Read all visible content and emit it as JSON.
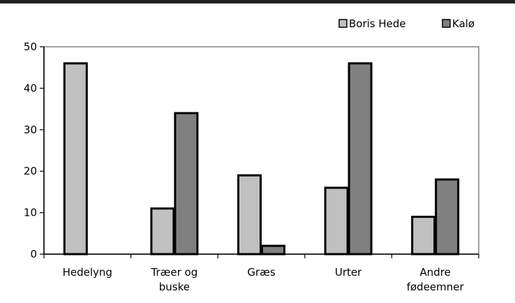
{
  "chart_data": {
    "type": "bar",
    "categories": [
      [
        "Hedelyng"
      ],
      [
        "Træer og",
        "buske"
      ],
      [
        "Græs"
      ],
      [
        "Urter"
      ],
      [
        "Andre",
        "fødeemner"
      ]
    ],
    "series": [
      {
        "name": "Boris Hede",
        "values": [
          46,
          11,
          19,
          16,
          9
        ],
        "color": "#c0c0c0"
      },
      {
        "name": "Kalø",
        "values": [
          0,
          34,
          2,
          46,
          18
        ],
        "color": "#808080"
      }
    ],
    "ylim": [
      0,
      50
    ],
    "yticks": [
      0,
      10,
      20,
      30,
      40,
      50
    ],
    "grid": false,
    "legend": "top-right"
  }
}
